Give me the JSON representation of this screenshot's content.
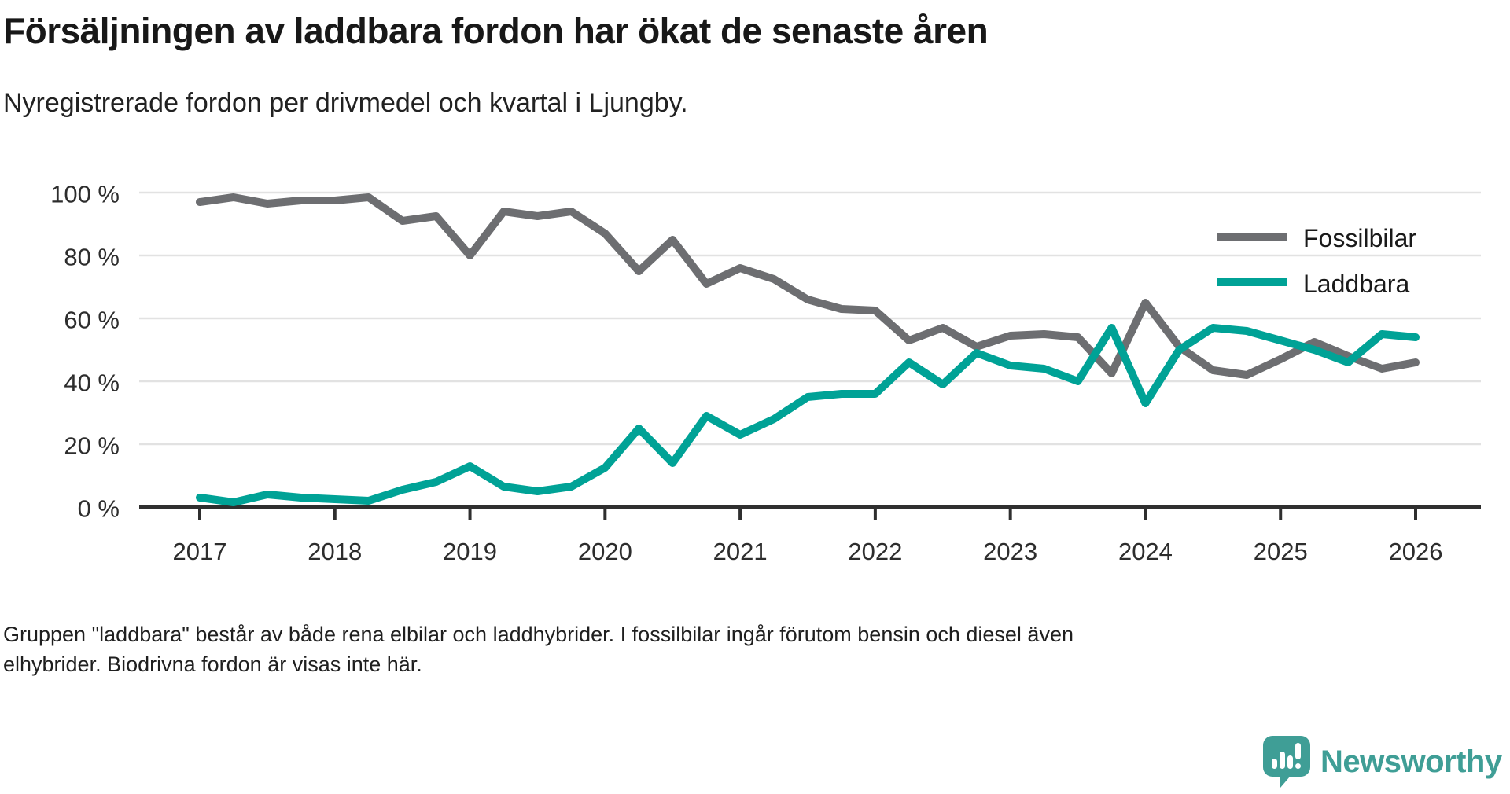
{
  "header": {
    "title": "Försäljningen av laddbara fordon har ökat de senaste åren",
    "subtitle": "Nyregistrerade fordon per drivmedel och kvartal i Ljungby."
  },
  "chart_data": {
    "type": "line",
    "title": "Försäljningen av laddbara fordon har ökat de senaste åren",
    "subtitle": "Nyregistrerade fordon per drivmedel och kvartal i Ljungby.",
    "x": {
      "start_year": 2017,
      "step_years": 0.25,
      "points": 37,
      "unit": "quarter"
    },
    "x_ticks": [
      2017,
      2018,
      2019,
      2020,
      2021,
      2022,
      2023,
      2024,
      2025,
      2026
    ],
    "y_ticks": [
      0,
      20,
      40,
      60,
      80,
      100
    ],
    "y_tick_suffix": " %",
    "ylim": [
      0,
      100
    ],
    "xlim": [
      2017,
      2026
    ],
    "grid": "horizontal",
    "legend_position": "top-right",
    "axis_color": "#2f2f2f",
    "gridline_color": "#e2e2e2",
    "series": [
      {
        "name": "Fossilbilar",
        "color": "#6d6e71",
        "values": [
          97,
          98.5,
          96.5,
          97.5,
          97.5,
          98.5,
          91,
          92.5,
          80,
          94,
          92.5,
          94,
          87,
          75,
          85,
          71,
          76,
          72.5,
          66,
          63,
          62.5,
          53,
          57,
          51,
          54.5,
          55,
          54,
          42.5,
          65,
          51,
          43.5,
          42,
          47,
          52.5,
          48,
          44,
          46
        ]
      },
      {
        "name": "Laddbara",
        "color": "#00a296",
        "values": [
          3,
          1.5,
          4,
          3,
          2.5,
          2,
          5.5,
          8,
          13,
          6.5,
          5,
          6.5,
          12.5,
          25,
          14,
          29,
          23,
          28,
          35,
          36,
          36,
          46,
          39,
          49,
          45,
          44,
          40,
          57,
          33,
          50,
          57,
          56,
          53,
          50,
          46,
          55,
          54
        ]
      }
    ]
  },
  "footer": {
    "note_line1": "Gruppen \"laddbara\" består av både rena elbilar och laddhybrider. I fossilbilar ingår förutom bensin och diesel även",
    "note_line2": "elhybrider. Biodrivna fordon är visas inte här.",
    "brand": "Newsworthy",
    "brand_color": "#3f9e96"
  }
}
